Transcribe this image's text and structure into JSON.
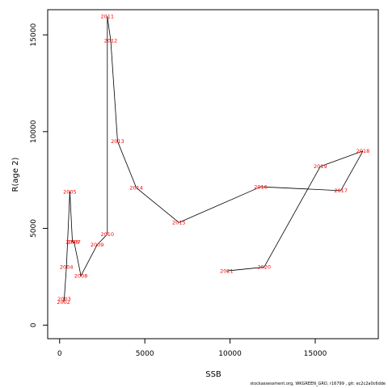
{
  "chart_data": {
    "type": "line",
    "title": "",
    "xlabel": "SSB",
    "ylabel": "R(age 2)",
    "xlim": [
      -700,
      18700
    ],
    "ylim": [
      -700,
      16300
    ],
    "x_ticks": [
      0,
      5000,
      10000,
      15000
    ],
    "y_ticks": [
      0,
      5000,
      10000,
      15000
    ],
    "x_tick_labels": [
      "0",
      "5000",
      "10000",
      "15000"
    ],
    "y_tick_labels": [
      "0",
      "5000",
      "10000",
      "15000"
    ],
    "grid": false,
    "legend": "none",
    "line_color": "#000000",
    "label_color": "#ff0000",
    "points": [
      {
        "label": "2002",
        "x": 230,
        "y": 1200
      },
      {
        "label": "2003",
        "x": 270,
        "y": 1350
      },
      {
        "label": "2004",
        "x": 400,
        "y": 3000
      },
      {
        "label": "2005",
        "x": 600,
        "y": 6900
      },
      {
        "label": "2006",
        "x": 750,
        "y": 4300
      },
      {
        "label": "2007",
        "x": 850,
        "y": 4300
      },
      {
        "label": "2008",
        "x": 1250,
        "y": 2550
      },
      {
        "label": "2009",
        "x": 2200,
        "y": 4150
      },
      {
        "label": "2010",
        "x": 2800,
        "y": 4700
      },
      {
        "label": "2011",
        "x": 2800,
        "y": 15950
      },
      {
        "label": "2012",
        "x": 3000,
        "y": 14700
      },
      {
        "label": "2013",
        "x": 3400,
        "y": 9500
      },
      {
        "label": "2014",
        "x": 4500,
        "y": 7100
      },
      {
        "label": "2015",
        "x": 7000,
        "y": 5300
      },
      {
        "label": "2016",
        "x": 11800,
        "y": 7150
      },
      {
        "label": "2017",
        "x": 16500,
        "y": 6950
      },
      {
        "label": "2018",
        "x": 17800,
        "y": 9000
      },
      {
        "label": "2019",
        "x": 15300,
        "y": 8200
      },
      {
        "label": "2020",
        "x": 12000,
        "y": 3000
      },
      {
        "label": "2021",
        "x": 9800,
        "y": 2800
      }
    ]
  },
  "footer_text": "stockassessment.org,  WKGREEN_GRO,  r16799 ,  git:  ec2c2a0c6dde"
}
